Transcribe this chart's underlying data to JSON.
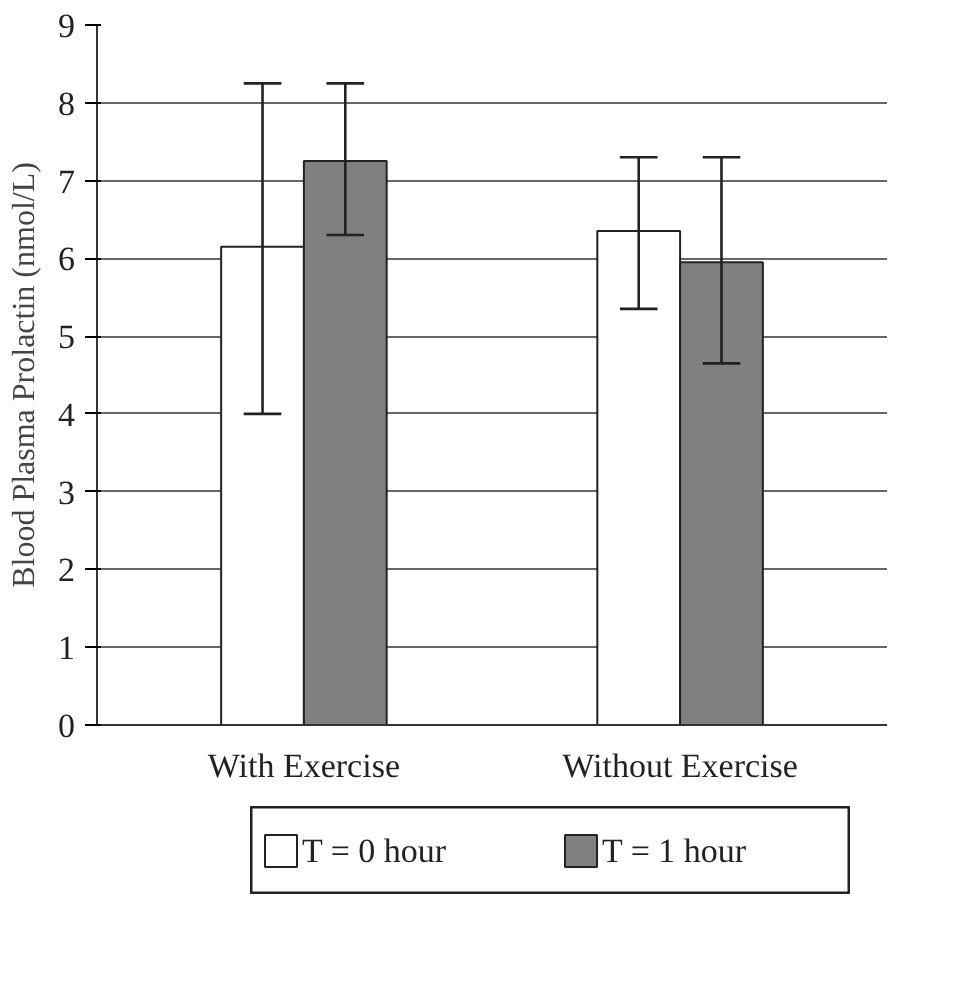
{
  "chart_data": {
    "type": "bar",
    "ylabel": "Blood Plasma Prolactin (nmol/L)",
    "categories": [
      "With Exercise",
      "Without Exercise"
    ],
    "series": [
      {
        "name": "T = 0 hour",
        "color": "#ffffff",
        "values": [
          6.15,
          6.35
        ],
        "errors": [
          [
            4.0,
            8.25
          ],
          [
            5.35,
            7.3
          ]
        ]
      },
      {
        "name": "T = 1 hour",
        "color": "#808080",
        "values": [
          7.25,
          5.95
        ],
        "errors": [
          [
            6.3,
            8.25
          ],
          [
            4.65,
            7.3
          ]
        ]
      }
    ],
    "ylim": [
      0,
      9
    ],
    "yticks": [
      0,
      1,
      2,
      3,
      4,
      5,
      6,
      7,
      8,
      9
    ],
    "grid": "y",
    "legend": "bottom"
  }
}
